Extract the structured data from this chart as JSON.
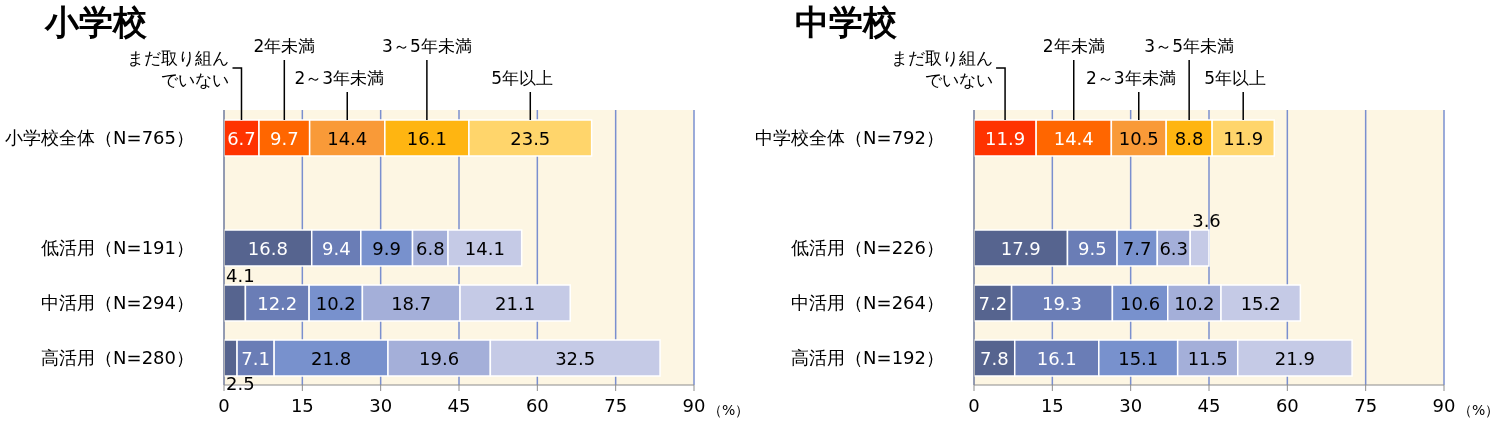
{
  "chart_data": [
    {
      "type": "bar",
      "orientation": "horizontal",
      "stacked": true,
      "title": "小学校",
      "xlabel": "（%）",
      "categories": [
        "小学校全体（N=765）",
        null,
        "低活用（N=191）",
        "中活用（N=294）",
        "高活用（N=280）"
      ],
      "series": [
        {
          "name": "まだ取り組んでいない",
          "values": [
            6.7,
            null,
            16.8,
            4.1,
            2.5
          ],
          "colors": [
            "#ff3300",
            null,
            "#56648f",
            "#56648f",
            "#56648f"
          ]
        },
        {
          "name": "2年未満",
          "values": [
            9.7,
            null,
            9.4,
            12.2,
            7.1
          ],
          "colors": [
            "#ff6600",
            null,
            "#6a7db6",
            "#6a7db6",
            "#6a7db6"
          ]
        },
        {
          "name": "2～3年未満",
          "values": [
            14.4,
            null,
            9.9,
            10.2,
            21.8
          ],
          "colors": [
            "#f99a38",
            null,
            "#7891cd",
            "#7891cd",
            "#7891cd"
          ]
        },
        {
          "name": "3～5年未満",
          "values": [
            16.1,
            null,
            6.8,
            18.7,
            19.6
          ],
          "colors": [
            "#ffb511",
            null,
            "#a4afd9",
            "#a4afd9",
            "#a4afd9"
          ]
        },
        {
          "name": "5年以上",
          "values": [
            23.5,
            null,
            14.1,
            21.1,
            32.5
          ],
          "colors": [
            "#ffd56b",
            null,
            "#c5cae6",
            "#c5cae6",
            "#c5cae6"
          ]
        }
      ],
      "xlim": [
        0,
        90
      ],
      "xticks": [
        0,
        15,
        30,
        45,
        60,
        75,
        90
      ],
      "grid": "x",
      "data_labels": true
    },
    {
      "type": "bar",
      "orientation": "horizontal",
      "stacked": true,
      "title": "中学校",
      "xlabel": "（%）",
      "categories": [
        "中学校全体（N=792）",
        null,
        "低活用（N=226）",
        "中活用（N=264）",
        "高活用（N=192）"
      ],
      "series": [
        {
          "name": "まだ取り組んでいない",
          "values": [
            11.9,
            null,
            17.9,
            7.2,
            7.8
          ],
          "colors": [
            "#ff3300",
            null,
            "#56648f",
            "#56648f",
            "#56648f"
          ]
        },
        {
          "name": "2年未満",
          "values": [
            14.4,
            null,
            9.5,
            19.3,
            16.1
          ],
          "colors": [
            "#ff6600",
            null,
            "#6a7db6",
            "#6a7db6",
            "#6a7db6"
          ]
        },
        {
          "name": "2～3年未満",
          "values": [
            10.5,
            null,
            7.7,
            10.6,
            15.1
          ],
          "colors": [
            "#f99a38",
            null,
            "#7891cd",
            "#7891cd",
            "#7891cd"
          ]
        },
        {
          "name": "3～5年未満",
          "values": [
            8.8,
            null,
            6.3,
            10.2,
            11.5
          ],
          "colors": [
            "#ffb511",
            null,
            "#a4afd9",
            "#a4afd9",
            "#a4afd9"
          ]
        },
        {
          "name": "5年以上",
          "values": [
            11.9,
            null,
            3.6,
            15.2,
            21.9
          ],
          "colors": [
            "#ffd56b",
            null,
            "#c5cae6",
            "#c5cae6",
            "#c5cae6"
          ]
        }
      ],
      "xlim": [
        0,
        90
      ],
      "xticks": [
        0,
        15,
        30,
        45,
        60,
        75,
        90
      ],
      "grid": "x",
      "data_labels": true
    }
  ]
}
